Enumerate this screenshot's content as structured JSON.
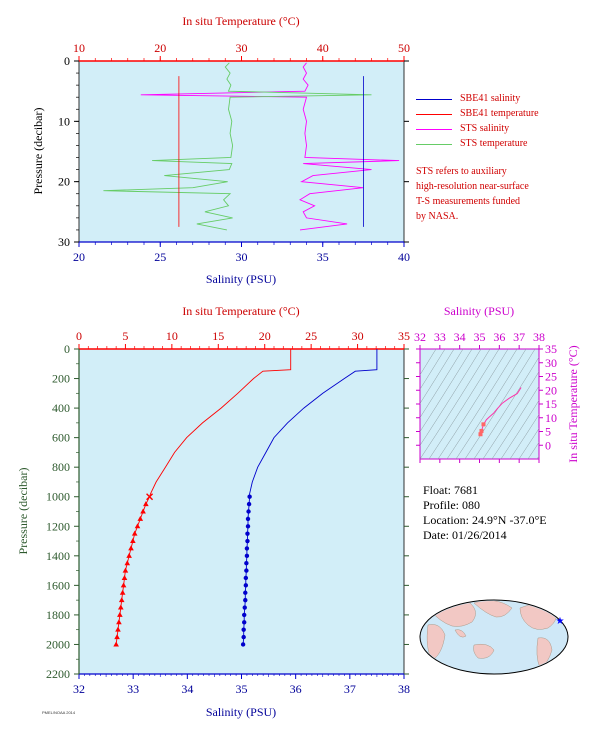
{
  "colors": {
    "plot_bg": "#d2eef8",
    "temperature": "#ff0000",
    "salinity": "#0000cc",
    "sts_salinity": "#ff00ff",
    "sts_temperature": "#66cc66",
    "pressure_axis": "#2e5a2e",
    "ts_axis": "#cc00cc"
  },
  "top_chart": {
    "title_top": "In situ Temperature (°C)",
    "temp_ticks": [
      "10",
      "20",
      "30",
      "40",
      "50"
    ],
    "ylabel": "Pressure (decibar)",
    "pressure_ticks": [
      "0",
      "10",
      "20",
      "30"
    ],
    "xlabel": "Salinity (PSU)",
    "sal_ticks": [
      "20",
      "25",
      "30",
      "35",
      "40"
    ]
  },
  "legend": [
    {
      "label": "SBE41 salinity",
      "color": "#0000cc"
    },
    {
      "label": "SBE41 temperature",
      "color": "#ff0000"
    },
    {
      "label": "STS salinity",
      "color": "#ff00ff"
    },
    {
      "label": "STS temperature",
      "color": "#66cc66"
    }
  ],
  "note": [
    "STS refers to auxiliary",
    "high-resolution near-surface",
    "T-S measurements funded",
    "by NASA."
  ],
  "bottom_chart": {
    "title_top": "In situ Temperature (°C)",
    "temp_ticks": [
      "0",
      "5",
      "10",
      "15",
      "20",
      "25",
      "30",
      "35"
    ],
    "ylabel": "Pressure (decibar)",
    "pressure_ticks": [
      "0",
      "200",
      "400",
      "600",
      "800",
      "1000",
      "1200",
      "1400",
      "1600",
      "1800",
      "2000",
      "2200"
    ],
    "xlabel": "Salinity (PSU)",
    "sal_ticks": [
      "32",
      "33",
      "34",
      "35",
      "36",
      "37",
      "38"
    ]
  },
  "ts_chart": {
    "title_top": "Salinity (PSU)",
    "sal_ticks": [
      "32",
      "33",
      "34",
      "35",
      "36",
      "37",
      "38"
    ],
    "ylabel": "In situ Temperature (°C)",
    "temp_ticks": [
      "0",
      "5",
      "10",
      "15",
      "20",
      "25",
      "30",
      "35"
    ]
  },
  "info": {
    "float": "Float:  7681",
    "profile": "Profile:  080",
    "location": "Location:  24.9°N  -37.0°E",
    "date": "Date:  01/26/2014"
  },
  "footer": "PMEL/NOAA 2014",
  "chart_data": [
    {
      "type": "line",
      "title": "",
      "x_axis_bottom": "Salinity (PSU)",
      "x_axis_top": "In situ Temperature (°C)",
      "ylabel": "Pressure (decibar)",
      "xlim_salinity": [
        20,
        40
      ],
      "xlim_temperature": [
        10,
        50
      ],
      "ylim": [
        0,
        30
      ],
      "series": [
        {
          "name": "STS salinity",
          "axis": "salinity",
          "pressure": [
            0.3,
            1,
            2,
            3,
            4,
            5,
            5.6,
            6,
            8,
            10,
            12,
            14,
            16,
            16.5,
            17,
            18,
            19,
            20,
            21,
            22,
            23,
            24,
            25,
            26,
            27,
            28
          ],
          "values": [
            34.0,
            33.8,
            34.0,
            33.8,
            34.1,
            33.9,
            23.8,
            34.0,
            33.8,
            34.0,
            33.9,
            34.0,
            33.9,
            39.7,
            33.8,
            38.0,
            34.4,
            33.7,
            37.5,
            34.2,
            33.6,
            34.5,
            33.8,
            34.0,
            36.5,
            33.6
          ]
        },
        {
          "name": "STS temperature",
          "axis": "temperature",
          "pressure": [
            0.3,
            1,
            2,
            3,
            4,
            5,
            5.6,
            6,
            8,
            10,
            12,
            14,
            16,
            16.5,
            17,
            18,
            19,
            20,
            21,
            21.5,
            22,
            23,
            24,
            25,
            26,
            27,
            28
          ],
          "values": [
            28.5,
            28.0,
            28.6,
            28.2,
            28.7,
            28.4,
            46.0,
            28.6,
            28.4,
            28.8,
            28.6,
            28.9,
            28.7,
            19.0,
            28.8,
            28.5,
            20.5,
            28.3,
            24.0,
            13.0,
            28.6,
            27.8,
            28.4,
            25.5,
            28.9,
            24.5,
            28.2
          ]
        },
        {
          "name": "SBE41 salinity",
          "axis": "salinity",
          "pressure": [
            2.5,
            27.5
          ],
          "values": [
            37.5,
            37.5
          ]
        },
        {
          "name": "SBE41 temperature",
          "axis": "temperature",
          "pressure": [
            2.5,
            27.5
          ],
          "values": [
            22.3,
            22.3
          ]
        }
      ]
    },
    {
      "type": "line",
      "title": "",
      "x_axis_bottom": "Salinity (PSU)",
      "x_axis_top": "In situ Temperature (°C)",
      "ylabel": "Pressure (decibar)",
      "xlim_salinity": [
        32,
        38
      ],
      "xlim_temperature": [
        0,
        35
      ],
      "ylim": [
        0,
        2200
      ],
      "series": [
        {
          "name": "SBE41 salinity",
          "axis": "salinity",
          "pressure": [
            0,
            140,
            150,
            200,
            300,
            400,
            500,
            600,
            700,
            800,
            900,
            980
          ],
          "values": [
            37.5,
            37.5,
            37.1,
            36.9,
            36.5,
            36.15,
            35.85,
            35.6,
            35.45,
            35.3,
            35.2,
            35.15
          ]
        },
        {
          "name": "SBE41 salinity (bottle samples)",
          "axis": "salinity",
          "pressure": [
            1000,
            1050,
            1100,
            1150,
            1200,
            1250,
            1300,
            1350,
            1400,
            1450,
            1500,
            1550,
            1600,
            1650,
            1700,
            1750,
            1800,
            1850,
            1900,
            1950,
            2000
          ],
          "values": [
            35.15,
            35.14,
            35.13,
            35.12,
            35.12,
            35.11,
            35.11,
            35.1,
            35.1,
            35.09,
            35.09,
            35.08,
            35.08,
            35.07,
            35.07,
            35.06,
            35.05,
            35.05,
            35.04,
            35.04,
            35.03
          ]
        },
        {
          "name": "SBE41 temperature",
          "axis": "temperature",
          "pressure": [
            0,
            140,
            150,
            200,
            300,
            400,
            500,
            600,
            700,
            800,
            900,
            980
          ],
          "values": [
            22.8,
            22.8,
            19.8,
            18.8,
            17.1,
            15.3,
            13.3,
            11.6,
            10.3,
            9.3,
            8.3,
            7.7
          ]
        },
        {
          "name": "SBE41 temperature (bottle samples)",
          "axis": "temperature",
          "pressure": [
            1000,
            1050,
            1100,
            1150,
            1200,
            1250,
            1300,
            1350,
            1400,
            1450,
            1500,
            1550,
            1600,
            1650,
            1700,
            1750,
            1800,
            1850,
            1900,
            1950,
            2000
          ],
          "values": [
            7.6,
            7.2,
            6.9,
            6.6,
            6.3,
            6.0,
            5.8,
            5.6,
            5.4,
            5.2,
            5.0,
            4.9,
            4.8,
            4.7,
            4.6,
            4.5,
            4.4,
            4.3,
            4.2,
            4.1,
            4.0
          ]
        }
      ]
    },
    {
      "type": "scatter",
      "title": "",
      "xlabel": "Salinity (PSU)",
      "ylabel": "In situ Temperature (°C)",
      "xlim": [
        32,
        38
      ],
      "ylim": [
        -5,
        35
      ],
      "series": [
        {
          "name": "T-S profile",
          "x": [
            35.05,
            35.1,
            35.2,
            35.35,
            35.5,
            35.7,
            35.9,
            36.15,
            36.5,
            36.9,
            37.1
          ],
          "y": [
            4.0,
            5.2,
            7.6,
            9.3,
            10.3,
            11.6,
            13.3,
            15.3,
            17.1,
            18.8,
            21.0
          ]
        }
      ]
    }
  ]
}
